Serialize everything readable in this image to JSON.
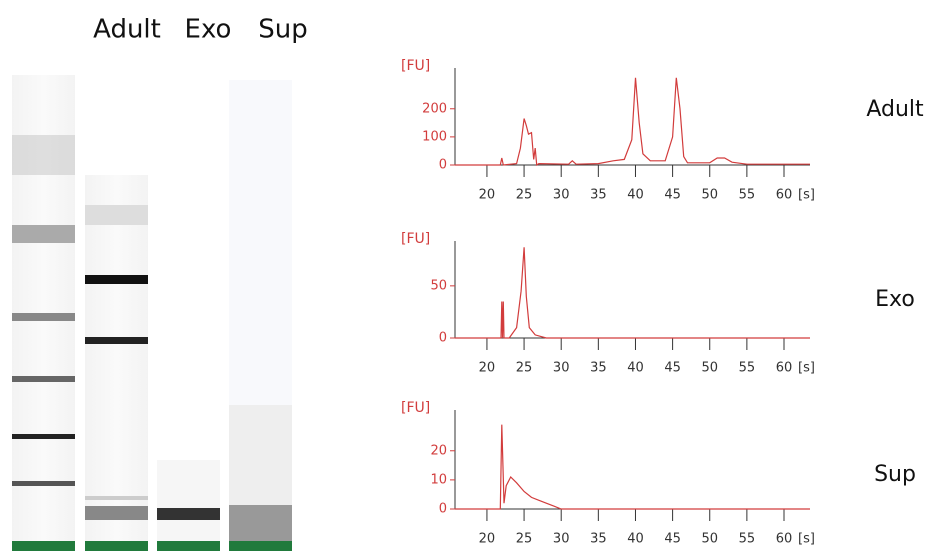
{
  "gel_lanes": [
    "Adult",
    "Exo",
    "Sup"
  ],
  "chart_data": [
    {
      "type": "line",
      "title": "Adult",
      "ylabel": "[FU]",
      "xlabel": "[s]",
      "color": "#d23c3c",
      "x": [
        15.7,
        21.8,
        22,
        22.2,
        24,
        24.5,
        25,
        25.3,
        25.6,
        26,
        26.3,
        26.5,
        26.7,
        27,
        31,
        31.5,
        32,
        35,
        37,
        38.5,
        39.5,
        40,
        40.5,
        41,
        42,
        44,
        45,
        45.5,
        46,
        46.5,
        47,
        50,
        51,
        52,
        53,
        55,
        63.5
      ],
      "values": [
        0,
        0,
        25,
        0,
        5,
        60,
        165,
        140,
        110,
        115,
        20,
        60,
        0,
        5,
        3,
        15,
        3,
        5,
        15,
        20,
        90,
        310,
        150,
        40,
        15,
        15,
        100,
        310,
        200,
        30,
        8,
        8,
        25,
        25,
        10,
        3,
        3
      ],
      "xlim": [
        15.7,
        63.5
      ],
      "ylim": [
        0,
        345
      ],
      "xticks": [
        20,
        25,
        30,
        35,
        40,
        45,
        50,
        55,
        60
      ],
      "yticks": [
        0,
        100,
        200
      ]
    },
    {
      "type": "line",
      "title": "Exo",
      "ylabel": "[FU]",
      "xlabel": "[s]",
      "color": "#d23c3c",
      "x": [
        15.7,
        21.9,
        22,
        22.1,
        22.2,
        22.3,
        23,
        24,
        24.6,
        25,
        25.3,
        25.7,
        26.5,
        28,
        63.5
      ],
      "values": [
        0,
        0,
        35,
        0,
        35,
        0,
        0,
        10,
        45,
        87,
        40,
        10,
        3,
        0,
        0
      ],
      "xlim": [
        15.7,
        63.5
      ],
      "ylim": [
        0,
        93
      ],
      "xticks": [
        20,
        25,
        30,
        35,
        40,
        45,
        50,
        55,
        60
      ],
      "yticks": [
        0,
        50
      ]
    },
    {
      "type": "line",
      "title": "Sup",
      "ylabel": "[FU]",
      "xlabel": "[s]",
      "color": "#d23c3c",
      "x": [
        15.7,
        21.8,
        22,
        22.3,
        22.6,
        23.2,
        24,
        25,
        26,
        27,
        28,
        29,
        30,
        63.5
      ],
      "values": [
        0,
        0,
        29,
        2,
        8,
        11,
        9,
        6,
        4,
        3,
        2,
        1,
        0,
        0
      ],
      "xlim": [
        15.7,
        63.5
      ],
      "ylim": [
        0,
        34
      ],
      "xticks": [
        20,
        25,
        30,
        35,
        40,
        45,
        50,
        55,
        60
      ],
      "yticks": [
        0,
        10,
        20
      ]
    }
  ]
}
